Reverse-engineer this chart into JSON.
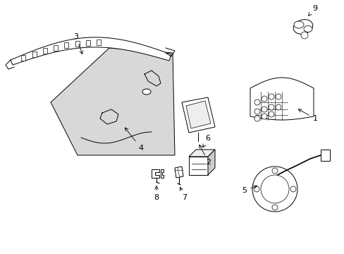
{
  "background_color": "#ffffff",
  "fig_width": 4.89,
  "fig_height": 3.6,
  "dpi": 100,
  "line_color": "#000000",
  "panel_fill": "#d8d8d8",
  "white": "#ffffff",
  "light_gray": "#eeeeee"
}
